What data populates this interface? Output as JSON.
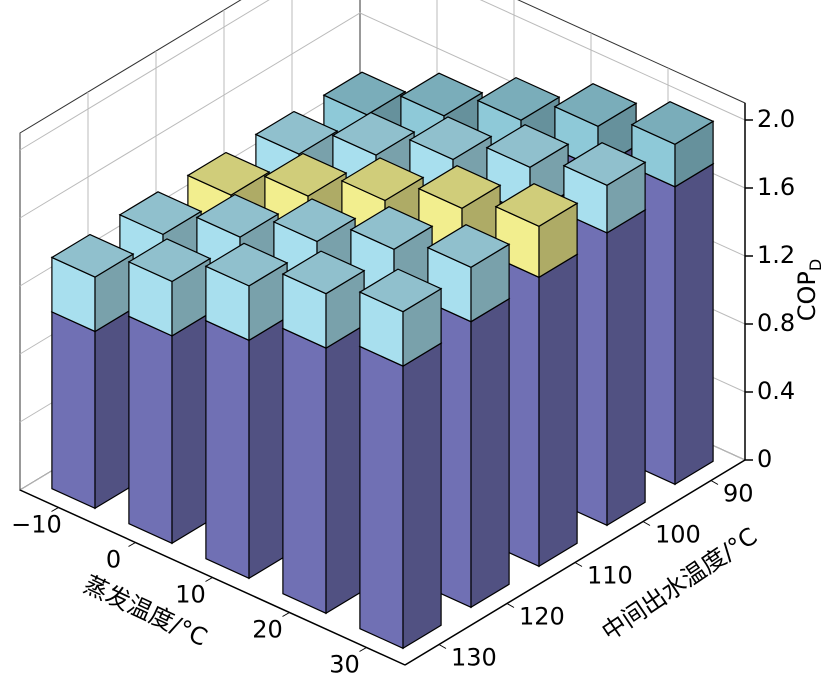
{
  "chart_data": {
    "type": "bar3d",
    "xlabel": "蒸发温度/°C",
    "x_categories": [
      "−10",
      "0",
      "10",
      "20",
      "30"
    ],
    "ylabel": "中间出水温度/°C",
    "y_categories": [
      "90",
      "100",
      "110",
      "120",
      "130"
    ],
    "zlabel": {
      "main": "COP",
      "sub": "D"
    },
    "zlim": [
      0,
      2.1
    ],
    "zticks": [
      0,
      0.4,
      0.8,
      1.2,
      1.6,
      {
        "value": 2,
        "label": "2.0"
      }
    ],
    "grid": true,
    "series": [
      {
        "color": "#7070b4",
        "values": [
          [
            1.1,
            1.3,
            1.48,
            1.65,
            1.75
          ],
          [
            1.08,
            1.28,
            1.46,
            1.62,
            1.72
          ],
          [
            1.06,
            1.26,
            1.44,
            1.6,
            1.7
          ],
          [
            1.05,
            1.24,
            1.42,
            1.58,
            1.68
          ],
          [
            1.04,
            1.22,
            1.4,
            1.56,
            1.66
          ]
        ]
      },
      {
        "colors": [
          "#8ec9d8",
          "#a8dfee",
          "#f2ee8e",
          "#a8dfee",
          "#a8dfee"
        ],
        "values": [
          [
            0.25,
            0.25,
            0.25,
            0.25,
            0.25
          ],
          [
            0.28,
            0.28,
            0.28,
            0.28,
            0.28
          ],
          [
            0.3,
            0.3,
            0.3,
            0.3,
            0.3
          ],
          [
            0.32,
            0.32,
            0.32,
            0.32,
            0.32
          ],
          [
            0.32,
            0.32,
            0.32,
            0.32,
            0.32
          ]
        ]
      }
    ]
  }
}
